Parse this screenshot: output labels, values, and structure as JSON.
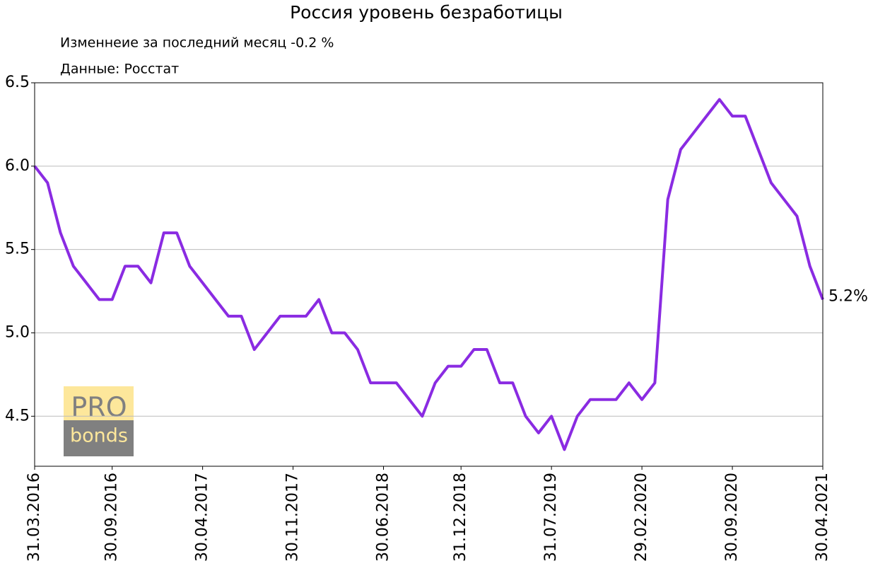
{
  "chart_data": {
    "type": "line",
    "title": "Россия уровень безработицы",
    "subtitles": [
      "Изменнеие за последний месяц -0.2 %",
      "Данные: Росстат"
    ],
    "logo": {
      "top": "PRO",
      "bottom": "bonds"
    },
    "x": [
      "31.03.2016",
      null,
      null,
      null,
      null,
      null,
      "30.09.2016",
      null,
      null,
      null,
      null,
      null,
      null,
      "30.04.2017",
      null,
      null,
      null,
      null,
      null,
      null,
      "30.11.2017",
      null,
      null,
      null,
      null,
      null,
      null,
      "30.06.2018",
      null,
      null,
      null,
      null,
      null,
      "31.12.2018",
      null,
      null,
      null,
      null,
      null,
      null,
      "31.07.2019",
      null,
      null,
      null,
      null,
      null,
      null,
      "29.02.2020",
      null,
      null,
      null,
      null,
      null,
      null,
      "30.09.2020",
      null,
      null,
      null,
      null,
      null,
      null,
      "30.04.2021"
    ],
    "series": [
      {
        "color": "#8a2be2",
        "values": [
          6.0,
          5.9,
          5.6,
          5.4,
          5.3,
          5.2,
          5.2,
          5.4,
          5.4,
          5.3,
          5.6,
          5.6,
          5.4,
          5.3,
          5.2,
          5.1,
          5.1,
          4.9,
          5.0,
          5.1,
          5.1,
          5.1,
          5.2,
          5.0,
          5.0,
          4.9,
          4.7,
          4.7,
          4.7,
          4.6,
          4.5,
          4.7,
          4.8,
          4.8,
          4.9,
          4.9,
          4.7,
          4.7,
          4.5,
          4.4,
          4.5,
          4.3,
          4.5,
          4.6,
          4.6,
          4.6,
          4.7,
          4.6,
          4.7,
          5.8,
          6.1,
          6.2,
          6.3,
          6.4,
          6.3,
          6.3,
          6.1,
          5.9,
          5.8,
          5.7,
          5.4,
          5.2
        ],
        "value_labels": [
          null,
          null,
          null,
          null,
          null,
          null,
          null,
          null,
          null,
          null,
          null,
          null,
          null,
          null,
          null,
          null,
          null,
          null,
          null,
          null,
          null,
          null,
          null,
          null,
          null,
          null,
          null,
          null,
          null,
          null,
          null,
          null,
          null,
          null,
          null,
          null,
          null,
          null,
          null,
          null,
          null,
          null,
          null,
          null,
          null,
          null,
          null,
          null,
          null,
          null,
          null,
          null,
          null,
          null,
          null,
          null,
          null,
          null,
          null,
          null,
          null,
          "5.2%"
        ]
      }
    ],
    "ylim": [
      4.2,
      6.5
    ],
    "yticks": [
      4.5,
      {
        "value": 5,
        "label": "5.0"
      },
      5.5,
      {
        "value": 6,
        "label": "6.0"
      },
      6.5
    ],
    "grid": true
  }
}
